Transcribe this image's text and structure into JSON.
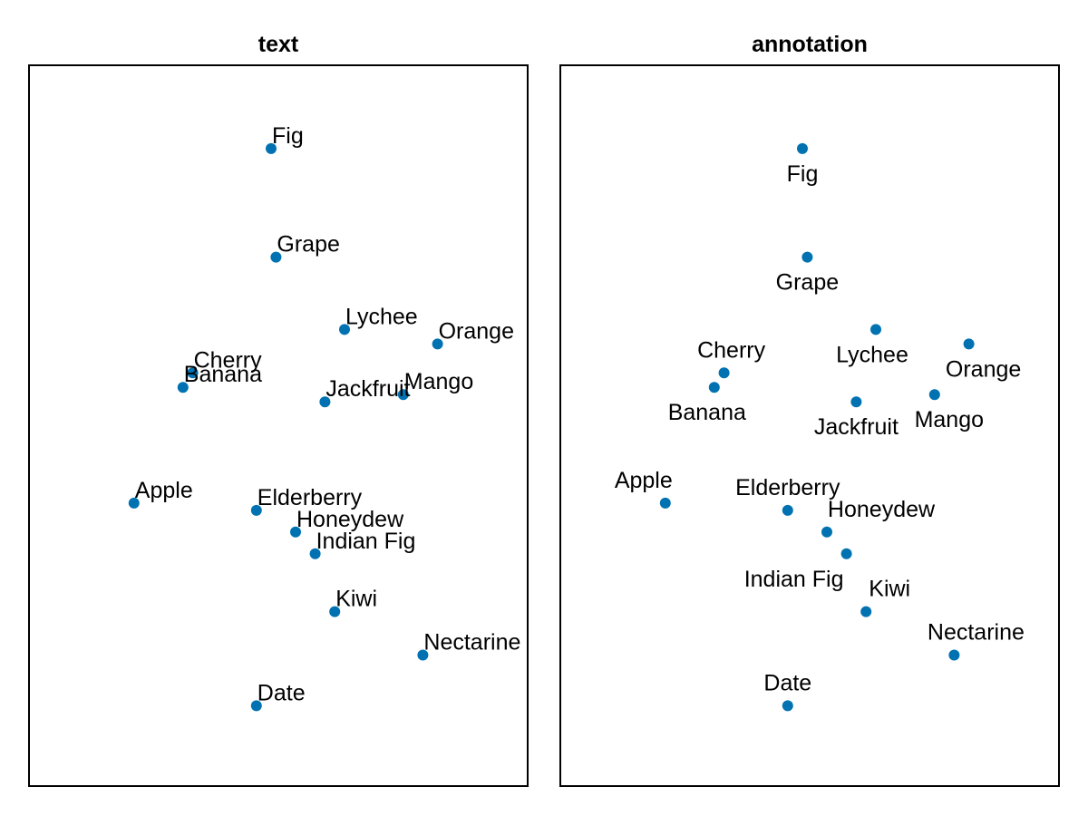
{
  "chart_data": [
    {
      "type": "scatter",
      "title": "text",
      "label_placement": "right-of-point, overlapping allowed",
      "points": [
        {
          "label": "Fig",
          "x": 0.3,
          "y": 0.95
        },
        {
          "label": "Grape",
          "x": 0.31,
          "y": 0.8
        },
        {
          "label": "Lychee",
          "x": 0.45,
          "y": 0.7
        },
        {
          "label": "Orange",
          "x": 0.64,
          "y": 0.68
        },
        {
          "label": "Cherry",
          "x": 0.14,
          "y": 0.64
        },
        {
          "label": "Banana",
          "x": 0.12,
          "y": 0.62
        },
        {
          "label": "Mango",
          "x": 0.57,
          "y": 0.61
        },
        {
          "label": "Jackfruit",
          "x": 0.41,
          "y": 0.6
        },
        {
          "label": "Apple",
          "x": 0.02,
          "y": 0.46
        },
        {
          "label": "Elderberry",
          "x": 0.27,
          "y": 0.45
        },
        {
          "label": "Honeydew",
          "x": 0.35,
          "y": 0.42
        },
        {
          "label": "Indian Fig",
          "x": 0.39,
          "y": 0.39
        },
        {
          "label": "Kiwi",
          "x": 0.43,
          "y": 0.31
        },
        {
          "label": "Nectarine",
          "x": 0.61,
          "y": 0.25
        },
        {
          "label": "Date",
          "x": 0.27,
          "y": 0.18
        }
      ],
      "xlim": [
        0.0,
        1.0
      ],
      "ylim": [
        0.0,
        1.0
      ],
      "grid": false,
      "axes_ticks": "hidden",
      "marker_color": "#0072b2"
    },
    {
      "type": "scatter",
      "title": "annotation",
      "label_placement": "repelled annotations avoiding overlap",
      "points": [
        {
          "label": "Fig",
          "x": 0.3,
          "y": 0.95
        },
        {
          "label": "Grape",
          "x": 0.31,
          "y": 0.8
        },
        {
          "label": "Lychee",
          "x": 0.45,
          "y": 0.7
        },
        {
          "label": "Orange",
          "x": 0.64,
          "y": 0.68
        },
        {
          "label": "Cherry",
          "x": 0.14,
          "y": 0.64
        },
        {
          "label": "Banana",
          "x": 0.12,
          "y": 0.62
        },
        {
          "label": "Mango",
          "x": 0.57,
          "y": 0.61
        },
        {
          "label": "Jackfruit",
          "x": 0.41,
          "y": 0.6
        },
        {
          "label": "Apple",
          "x": 0.02,
          "y": 0.46
        },
        {
          "label": "Elderberry",
          "x": 0.27,
          "y": 0.45
        },
        {
          "label": "Honeydew",
          "x": 0.35,
          "y": 0.42
        },
        {
          "label": "Indian Fig",
          "x": 0.39,
          "y": 0.39
        },
        {
          "label": "Kiwi",
          "x": 0.43,
          "y": 0.31
        },
        {
          "label": "Nectarine",
          "x": 0.61,
          "y": 0.25
        },
        {
          "label": "Date",
          "x": 0.27,
          "y": 0.18
        }
      ],
      "xlim": [
        0.0,
        1.0
      ],
      "ylim": [
        0.0,
        1.0
      ],
      "grid": false,
      "axes_ticks": "hidden",
      "marker_color": "#0072b2"
    }
  ]
}
